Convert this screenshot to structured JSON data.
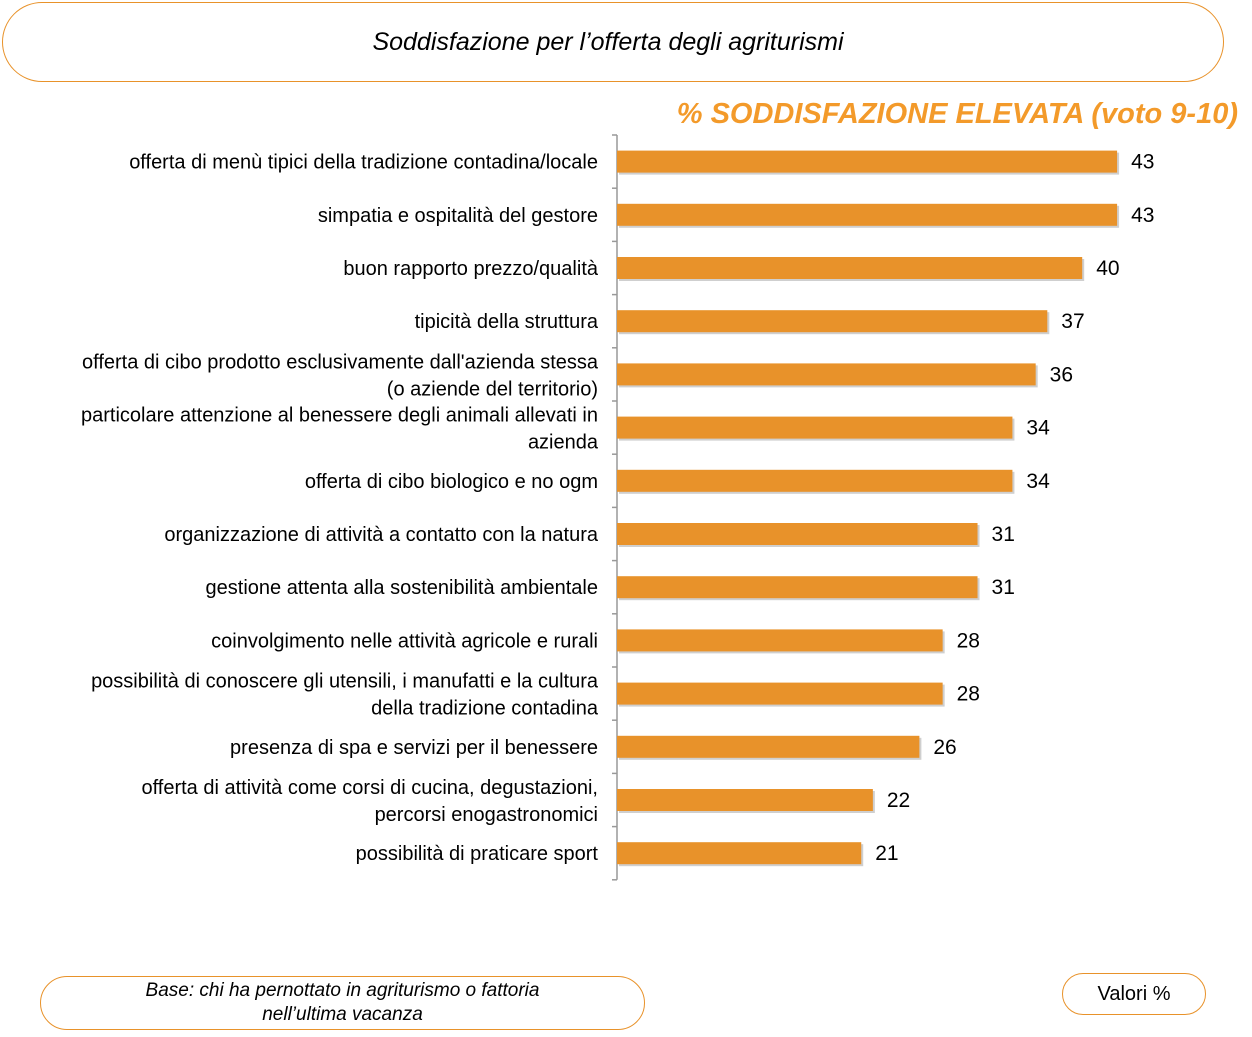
{
  "header": {
    "title": "Soddisfazione per l’offerta degli agriturismi"
  },
  "chart_data": {
    "type": "bar",
    "orientation": "horizontal",
    "title": "% SODDISFAZIONE ELEVATA (voto 9-10)",
    "categories": [
      "offerta di menù tipici della tradizione contadina/locale",
      "simpatia e ospitalità del gestore",
      "buon rapporto prezzo/qualità",
      "tipicità della struttura",
      "offerta di cibo prodotto esclusivamente dall'azienda stessa (o aziende del territorio)",
      "particolare attenzione al benessere degli animali allevati in azienda",
      "offerta di cibo biologico e no ogm",
      "organizzazione di attività a contatto con la natura",
      "gestione attenta alla sostenibilità ambientale",
      "coinvolgimento nelle attività agricole e rurali",
      "possibilità di conoscere gli utensili, i manufatti e la cultura della tradizione contadina",
      "presenza di spa e servizi per il benessere",
      "offerta di attività come corsi di cucina, degustazioni, percorsi enogastronomici",
      "possibilità di praticare sport"
    ],
    "label_lines": [
      [
        "offerta di menù tipici della tradizione contadina/locale"
      ],
      [
        "simpatia e ospitalità del gestore"
      ],
      [
        "buon rapporto prezzo/qualità"
      ],
      [
        "tipicità della struttura"
      ],
      [
        "offerta di cibo prodotto esclusivamente dall'azienda stessa",
        "(o aziende del territorio)"
      ],
      [
        "particolare attenzione al benessere degli animali allevati in",
        "azienda"
      ],
      [
        "offerta di cibo biologico e no ogm"
      ],
      [
        "organizzazione di attività a contatto con la natura"
      ],
      [
        "gestione attenta alla sostenibilità ambientale"
      ],
      [
        "coinvolgimento nelle attività agricole e rurali"
      ],
      [
        "possibilità di conoscere gli utensili, i manufatti e la cultura",
        "della tradizione contadina"
      ],
      [
        "presenza di spa e servizi per il benessere"
      ],
      [
        "offerta di attività come corsi di cucina, degustazioni,",
        "percorsi enogastronomici"
      ],
      [
        "possibilità di praticare sport"
      ]
    ],
    "values": [
      43,
      43,
      40,
      37,
      36,
      34,
      34,
      31,
      31,
      28,
      28,
      26,
      22,
      21
    ],
    "xlim": [
      0,
      50
    ],
    "grid": false,
    "bar_color": "#e8922a",
    "title_color": "#f39a2a"
  },
  "footer": {
    "base_lines": [
      "Base: chi ha pernottato in agriturismo o fattoria",
      "nell’ultima vacanza"
    ],
    "values_label": "Valori %"
  },
  "colors": {
    "accent": "#e8922a"
  }
}
